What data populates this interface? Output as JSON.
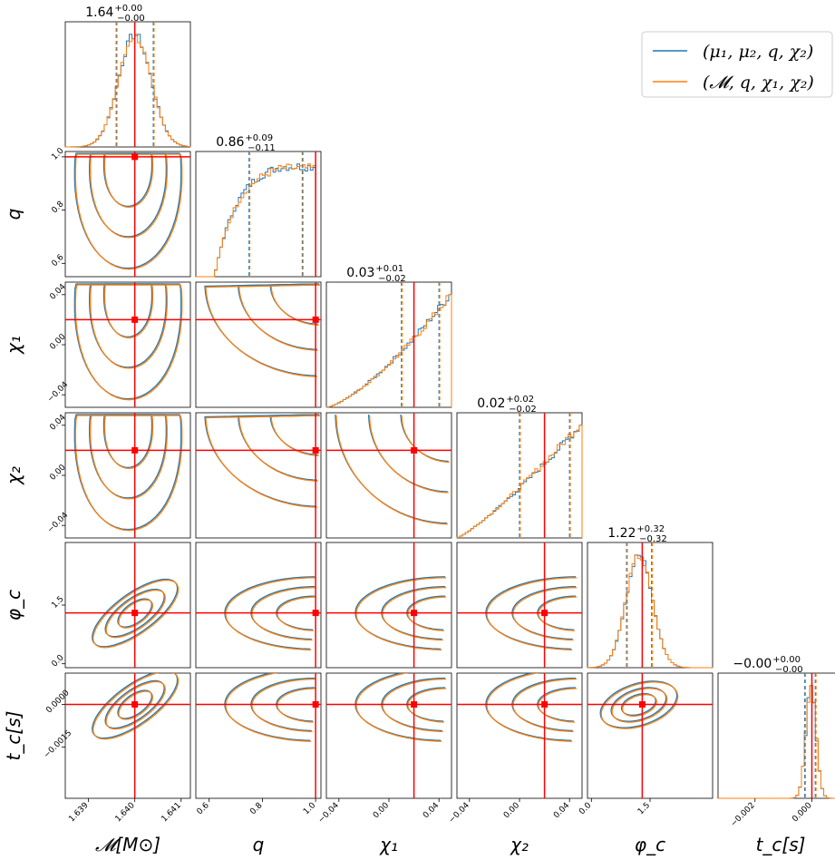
{
  "chart_data": {
    "type": "corner",
    "parameters": [
      {
        "key": "mc",
        "label": "𝓜[M⊙]",
        "range": [
          1.6385,
          1.6412
        ],
        "ticks": [
          1.639,
          1.64,
          1.641
        ],
        "tick_labels": [
          "1.639",
          "1.640",
          "1.641"
        ],
        "truth": 1.64,
        "title": {
          "median": "1.64",
          "plus": "+0.00",
          "minus": "−0.00"
        }
      },
      {
        "key": "q",
        "label": "q",
        "range": [
          0.55,
          1.02
        ],
        "ticks": [
          0.6,
          0.8,
          1.0
        ],
        "tick_labels": [
          "0.6",
          "0.8",
          "1.0"
        ],
        "truth": 1.0,
        "title": {
          "median": "0.86",
          "plus": "+0.09",
          "minus": "−0.11"
        }
      },
      {
        "key": "chi1",
        "label": "χ₁",
        "range": [
          -0.05,
          0.05
        ],
        "ticks": [
          -0.04,
          0.0,
          0.04
        ],
        "tick_labels": [
          "−0.04",
          "0.00",
          "0.04"
        ],
        "truth": 0.02,
        "title": {
          "median": "0.03",
          "plus": "+0.01",
          "minus": "−0.02"
        }
      },
      {
        "key": "chi2",
        "label": "χ₂",
        "range": [
          -0.05,
          0.05
        ],
        "ticks": [
          -0.04,
          0.0,
          0.04
        ],
        "tick_labels": [
          "−0.04",
          "0.00",
          "0.04"
        ],
        "truth": 0.02,
        "title": {
          "median": "0.02",
          "plus": "+0.02",
          "minus": "−0.02"
        }
      },
      {
        "key": "phic",
        "label": "φ_c",
        "range": [
          -0.1,
          3.1
        ],
        "ticks": [
          0.0,
          1.5
        ],
        "tick_labels": [
          "0.0",
          "1.5"
        ],
        "truth": 1.3,
        "title": {
          "median": "1.22",
          "plus": "+0.32",
          "minus": "−0.32"
        }
      },
      {
        "key": "tc",
        "label": "t_c[s]",
        "range": [
          -0.0033,
          0.0011
        ],
        "ticks": [
          -0.0015,
          0.0
        ],
        "tick_labels": [
          "−0.0015",
          "0.0000"
        ],
        "truth": 0.0,
        "title": {
          "median": "−0.00",
          "plus": "+0.00",
          "minus": "−0.00"
        },
        "diag_ticks": [
          -0.002,
          0.0
        ],
        "diag_tick_labels": [
          "−0.002",
          "0.000"
        ]
      }
    ],
    "series": [
      {
        "name": "(μ₁, μ₂, q, χ₂)",
        "color": "#1f77b4"
      },
      {
        "name": "(𝓜, q, χ₁, χ₂)",
        "color": "#ff7f0e"
      }
    ],
    "truth_color": "#ff0000",
    "legend_position": "top-right"
  },
  "colors": {
    "blue": "#1f77b4",
    "orange": "#ff7f0e",
    "truth": "#ff0000"
  }
}
